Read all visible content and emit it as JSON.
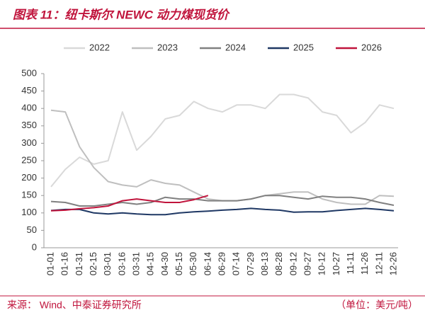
{
  "chart_data": {
    "type": "line",
    "title": "图表 11：纽卡斯尔 NEWC 动力煤现货价",
    "source": "来源： Wind、中泰证券研究所",
    "unit": "（单位：美元/吨）",
    "categories": [
      "01-01",
      "01-16",
      "01-31",
      "02-15",
      "03-01",
      "03-16",
      "03-31",
      "04-15",
      "04-30",
      "05-15",
      "05-30",
      "06-14",
      "06-29",
      "07-14",
      "07-29",
      "08-13",
      "08-28",
      "09-12",
      "09-27",
      "10-12",
      "10-27",
      "11-11",
      "11-26",
      "12-11",
      "12-26"
    ],
    "series": [
      {
        "name": "2022",
        "color": "#d9d9d9",
        "values": [
          175,
          225,
          260,
          240,
          250,
          390,
          280,
          320,
          370,
          380,
          420,
          400,
          390,
          410,
          410,
          400,
          440,
          440,
          430,
          390,
          380,
          330,
          360,
          410,
          400
        ]
      },
      {
        "name": "2023",
        "color": "#bfbfbf",
        "values": [
          395,
          390,
          290,
          230,
          190,
          180,
          175,
          195,
          185,
          180,
          160,
          140,
          135,
          135,
          140,
          150,
          155,
          160,
          160,
          140,
          130,
          125,
          125,
          150,
          148
        ]
      },
      {
        "name": "2024",
        "color": "#808080",
        "values": [
          133,
          130,
          120,
          120,
          125,
          130,
          125,
          130,
          145,
          140,
          140,
          135,
          135,
          135,
          140,
          150,
          150,
          145,
          140,
          148,
          145,
          145,
          140,
          130,
          122
        ]
      },
      {
        "name": "2025",
        "color": "#1f3864",
        "values": [
          107,
          110,
          110,
          100,
          97,
          100,
          97,
          95,
          95,
          100,
          103,
          105,
          108,
          110,
          113,
          110,
          108,
          102,
          103,
          103,
          107,
          110,
          113,
          110,
          106
        ]
      },
      {
        "name": "2026",
        "color": "#c0143c",
        "values": [
          106,
          108,
          112,
          115,
          120,
          135,
          140,
          135,
          130,
          130,
          138,
          150,
          null,
          null,
          null,
          null,
          null,
          null,
          null,
          null,
          null,
          null,
          null,
          null,
          null
        ]
      }
    ],
    "ylim": [
      0,
      500
    ],
    "yticks": [
      0,
      50,
      100,
      150,
      200,
      250,
      300,
      350,
      400,
      450,
      500
    ]
  }
}
